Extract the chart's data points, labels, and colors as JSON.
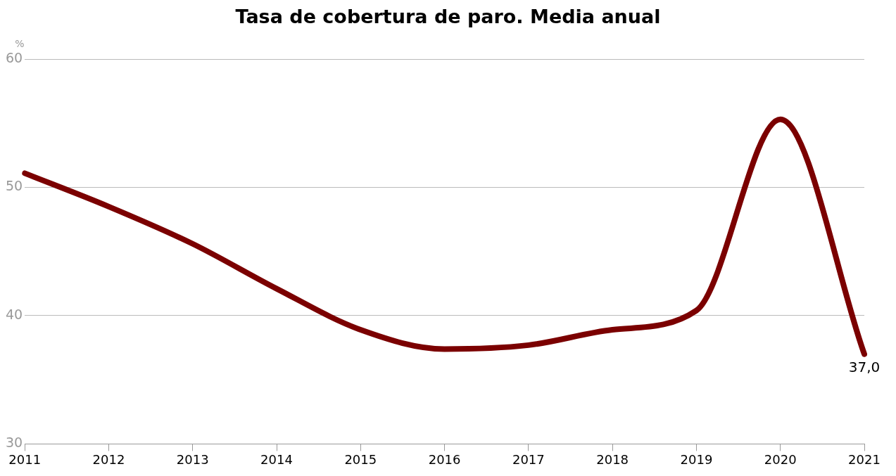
{
  "chart_data": {
    "type": "line",
    "title": "Tasa de cobertura de paro. Media anual",
    "ylabel": "%",
    "categories": [
      "2011",
      "2012",
      "2013",
      "2014",
      "2015",
      "2016",
      "2017",
      "2018",
      "2019",
      "2020",
      "2021"
    ],
    "series": [
      {
        "color": "#7b0000",
        "values": [
          51.1,
          48.5,
          45.6,
          42.1,
          38.9,
          37.4,
          37.7,
          38.9,
          40.4,
          55.3,
          37.0
        ],
        "value_labels": [
          null,
          null,
          null,
          null,
          null,
          null,
          null,
          null,
          null,
          null,
          "37,0"
        ]
      }
    ],
    "ylim": [
      30,
      60
    ],
    "yticks": [
      30,
      40,
      50,
      60
    ],
    "grid": "y",
    "legend": false,
    "marker": "none",
    "line_style": "solid"
  }
}
